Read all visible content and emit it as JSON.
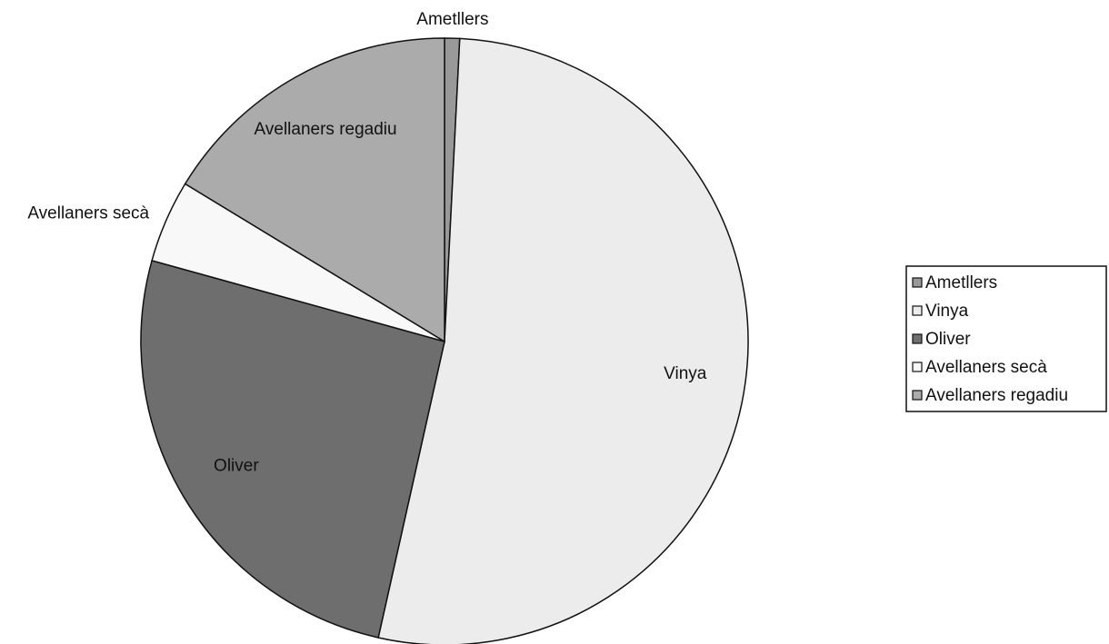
{
  "chart_data": {
    "type": "pie",
    "categories": [
      "Ametllers",
      "Vinya",
      "Oliver",
      "Avellaners secà",
      "Avellaners regadiu"
    ],
    "values": [
      0.8,
      52.7,
      25.8,
      4.4,
      16.3
    ],
    "colors": [
      "#999999",
      "#ececec",
      "#6e6e6e",
      "#f8f8f8",
      "#ababab"
    ],
    "legend": "right"
  }
}
